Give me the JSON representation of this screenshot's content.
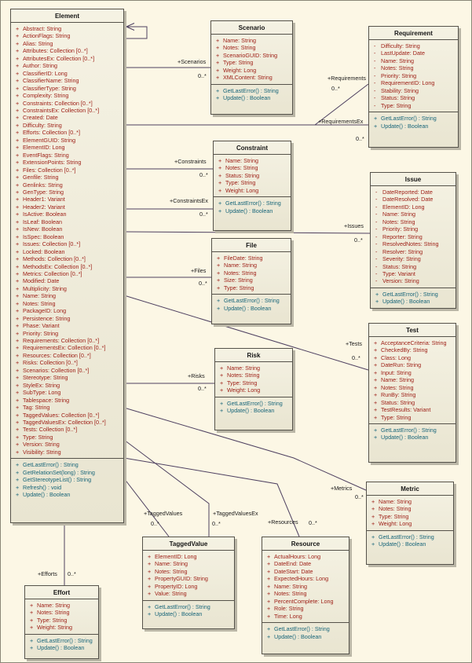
{
  "diagram": {
    "colors": {
      "background": "#fcf7e5",
      "box_fill": "#efebda",
      "box_border": "#55524a",
      "attribute_text": "#9c1b12",
      "method_text": "#176579",
      "connector": "#4e4060",
      "shadow": "#bab6a6"
    },
    "classes": [
      {
        "id": "element",
        "title": "Element",
        "attributes": [
          {
            "v": "+",
            "t": "Abstract: String"
          },
          {
            "v": "+",
            "t": "ActionFlags: String"
          },
          {
            "v": "+",
            "t": "Alias: String"
          },
          {
            "v": "+",
            "t": "Attributes: Collection [0..*]"
          },
          {
            "v": "+",
            "t": "AttributesEx: Collection [0..*]"
          },
          {
            "v": "+",
            "t": "Author: String"
          },
          {
            "v": "+",
            "t": "ClassifierID: Long"
          },
          {
            "v": "+",
            "t": "ClassifierName: String"
          },
          {
            "v": "+",
            "t": "ClassifierType: String"
          },
          {
            "v": "+",
            "t": "Complexity: String"
          },
          {
            "v": "+",
            "t": "Constraints: Collection [0..*]"
          },
          {
            "v": "+",
            "t": "ConstraintsEx: Collection [0..*]"
          },
          {
            "v": "+",
            "t": "Created: Date"
          },
          {
            "v": "+",
            "t": "Difficulty: String"
          },
          {
            "v": "+",
            "t": "Efforts: Collection [0..*]"
          },
          {
            "v": "+",
            "t": "ElementGUID: String"
          },
          {
            "v": "+",
            "t": "ElementID: Long"
          },
          {
            "v": "+",
            "t": "EventFlags: String"
          },
          {
            "v": "+",
            "t": "ExtensionPoints: String"
          },
          {
            "v": "+",
            "t": "Files: Collection [0..*]"
          },
          {
            "v": "+",
            "t": "Genfile: String"
          },
          {
            "v": "+",
            "t": "Genlinks: String"
          },
          {
            "v": "+",
            "t": "GenType: String"
          },
          {
            "v": "+",
            "t": "Header1: Variant"
          },
          {
            "v": "+",
            "t": "Header2: Variant"
          },
          {
            "v": "+",
            "t": "IsActive: Boolean"
          },
          {
            "v": "+",
            "t": "IsLeaf: Boolean"
          },
          {
            "v": "+",
            "t": "IsNew: Boolean"
          },
          {
            "v": "+",
            "t": "IsSpec: Boolean"
          },
          {
            "v": "+",
            "t": "Issues: Collection [0..*]"
          },
          {
            "v": "+",
            "t": "Locked: Boolean"
          },
          {
            "v": "+",
            "t": "Methods: Collection [0..*]"
          },
          {
            "v": "+",
            "t": "MethodsEx: Collection [0..*]"
          },
          {
            "v": "+",
            "t": "Metrics: Collection [0..*]"
          },
          {
            "v": "+",
            "t": "Modified: Date"
          },
          {
            "v": "+",
            "t": "Multiplicity: String"
          },
          {
            "v": "+",
            "t": "Name: String"
          },
          {
            "v": "+",
            "t": "Notes: String"
          },
          {
            "v": "+",
            "t": "PackageID: Long"
          },
          {
            "v": "+",
            "t": "Persistence: String"
          },
          {
            "v": "+",
            "t": "Phase: Variant"
          },
          {
            "v": "+",
            "t": "Priority: String"
          },
          {
            "v": "+",
            "t": "Requirements: Collection [0..*]"
          },
          {
            "v": "+",
            "t": "RequirementsEx: Collection [0..*]"
          },
          {
            "v": "+",
            "t": "Resources: Collection [0..*]"
          },
          {
            "v": "+",
            "t": "Risks: Collection [0..*]"
          },
          {
            "v": "+",
            "t": "Scenarios: Collection [0..*]"
          },
          {
            "v": "+",
            "t": "Stereotype: String"
          },
          {
            "v": "+",
            "t": "StyleEx: String"
          },
          {
            "v": "+",
            "t": "SubType: Long"
          },
          {
            "v": "+",
            "t": "Tablespace: String"
          },
          {
            "v": "+",
            "t": "Tag: String"
          },
          {
            "v": "+",
            "t": "TaggedValues: Collection [0..*]"
          },
          {
            "v": "+",
            "t": "TaggedValuesEx: Collection [0..*]"
          },
          {
            "v": "+",
            "t": "Tests: Collection [0..*]"
          },
          {
            "v": "+",
            "t": "Type: String"
          },
          {
            "v": "+",
            "t": "Version: String"
          },
          {
            "v": "+",
            "t": "Visibility: String"
          }
        ],
        "methods": [
          {
            "v": "+",
            "t": "GetLastError() : String"
          },
          {
            "v": "+",
            "t": "GetRelationSet(long) : String"
          },
          {
            "v": "+",
            "t": "GetStereotypeList() : String"
          },
          {
            "v": "+",
            "t": "Refresh() : void"
          },
          {
            "v": "+",
            "t": "Update() : Boolean"
          }
        ]
      },
      {
        "id": "scenario",
        "title": "Scenario",
        "attributes": [
          {
            "v": "+",
            "t": "Name: String"
          },
          {
            "v": "+",
            "t": "Notes: String"
          },
          {
            "v": "+",
            "t": "ScenarioGUID: String"
          },
          {
            "v": "+",
            "t": "Type: String"
          },
          {
            "v": "+",
            "t": "Weight: Long"
          },
          {
            "v": "+",
            "t": "XMLContent: String"
          }
        ],
        "methods": [
          {
            "v": "+",
            "t": "GetLastError() : String"
          },
          {
            "v": "+",
            "t": "Update() : Boolean"
          }
        ]
      },
      {
        "id": "requirement",
        "title": "Requirement",
        "attributes": [
          {
            "v": "-",
            "t": "Difficulty: String"
          },
          {
            "v": "-",
            "t": "LastUpdate: Date"
          },
          {
            "v": "-",
            "t": "Name: String"
          },
          {
            "v": "-",
            "t": "Notes: String"
          },
          {
            "v": "-",
            "t": "Priority: String"
          },
          {
            "v": "-",
            "t": "RequirementID: Long"
          },
          {
            "v": "-",
            "t": "Stability: String"
          },
          {
            "v": "-",
            "t": "Status: String"
          },
          {
            "v": "-",
            "t": "Type: String"
          }
        ],
        "methods": [
          {
            "v": "+",
            "t": "GetLastError() : String"
          },
          {
            "v": "+",
            "t": "Update() : Boolean"
          }
        ]
      },
      {
        "id": "constraint",
        "title": "Constraint",
        "attributes": [
          {
            "v": "+",
            "t": "Name: String"
          },
          {
            "v": "+",
            "t": "Notes: String"
          },
          {
            "v": "+",
            "t": "Status: String"
          },
          {
            "v": "+",
            "t": "Type: String"
          },
          {
            "v": "+",
            "t": "Weight: Long"
          }
        ],
        "methods": [
          {
            "v": "+",
            "t": "GetLastError() : String"
          },
          {
            "v": "+",
            "t": "Update() : Boolean"
          }
        ]
      },
      {
        "id": "issue",
        "title": "Issue",
        "attributes": [
          {
            "v": "-",
            "t": "DateReported: Date"
          },
          {
            "v": "-",
            "t": "DateResolved: Date"
          },
          {
            "v": "-",
            "t": "ElementID: Long"
          },
          {
            "v": "-",
            "t": "Name: String"
          },
          {
            "v": "-",
            "t": "Notes: String"
          },
          {
            "v": "-",
            "t": "Priority: String"
          },
          {
            "v": "-",
            "t": "Reporter: String"
          },
          {
            "v": "-",
            "t": "ResolvedNotes: String"
          },
          {
            "v": "-",
            "t": "Resolver: String"
          },
          {
            "v": "-",
            "t": "Severity: String"
          },
          {
            "v": "-",
            "t": "Status: String"
          },
          {
            "v": "-",
            "t": "Type: Variant"
          },
          {
            "v": "-",
            "t": "Version: String"
          }
        ],
        "methods": [
          {
            "v": "+",
            "t": "GetLastError() : String"
          },
          {
            "v": "+",
            "t": "Update() : Boolean"
          }
        ]
      },
      {
        "id": "file",
        "title": "File",
        "attributes": [
          {
            "v": "+",
            "t": "FileDate: String"
          },
          {
            "v": "+",
            "t": "Name: String"
          },
          {
            "v": "+",
            "t": "Notes: String"
          },
          {
            "v": "+",
            "t": "Size: String"
          },
          {
            "v": "+",
            "t": "Type: String"
          }
        ],
        "methods": [
          {
            "v": "+",
            "t": "GetLastError() : String"
          },
          {
            "v": "+",
            "t": "Update() : Boolean"
          }
        ]
      },
      {
        "id": "test",
        "title": "Test",
        "attributes": [
          {
            "v": "+",
            "t": "AcceptanceCriteria: String"
          },
          {
            "v": "+",
            "t": "CheckedBy: String"
          },
          {
            "v": "+",
            "t": "Class: Long"
          },
          {
            "v": "+",
            "t": "DateRun: String"
          },
          {
            "v": "+",
            "t": "Input: String"
          },
          {
            "v": "+",
            "t": "Name: String"
          },
          {
            "v": "+",
            "t": "Notes: String"
          },
          {
            "v": "+",
            "t": "RunBy: String"
          },
          {
            "v": "+",
            "t": "Status: String"
          },
          {
            "v": "+",
            "t": "TestResults: Variant"
          },
          {
            "v": "+",
            "t": "Type: String"
          }
        ],
        "methods": [
          {
            "v": "+",
            "t": "GetLastError() : String"
          },
          {
            "v": "+",
            "t": "Update() : Boolean"
          }
        ]
      },
      {
        "id": "risk",
        "title": "Risk",
        "attributes": [
          {
            "v": "+",
            "t": "Name: String"
          },
          {
            "v": "+",
            "t": "Notes: String"
          },
          {
            "v": "+",
            "t": "Type: String"
          },
          {
            "v": "+",
            "t": "Weight: Long"
          }
        ],
        "methods": [
          {
            "v": "+",
            "t": "GetLastError() : String"
          },
          {
            "v": "+",
            "t": "Update() : Boolean"
          }
        ]
      },
      {
        "id": "metric",
        "title": "Metric",
        "attributes": [
          {
            "v": "+",
            "t": "Name: String"
          },
          {
            "v": "+",
            "t": "Notes: String"
          },
          {
            "v": "+",
            "t": "Type: String"
          },
          {
            "v": "+",
            "t": "Weight: Long"
          }
        ],
        "methods": [
          {
            "v": "+",
            "t": "GetLastError() : String"
          },
          {
            "v": "+",
            "t": "Update() : Boolean"
          }
        ]
      },
      {
        "id": "taggedvalue",
        "title": "TaggedValue",
        "attributes": [
          {
            "v": "+",
            "t": "ElementID: Long"
          },
          {
            "v": "+",
            "t": "Name: String"
          },
          {
            "v": "+",
            "t": "Notes: String"
          },
          {
            "v": "+",
            "t": "PropertyGUID: String"
          },
          {
            "v": "+",
            "t": "PropertyID: Long"
          },
          {
            "v": "+",
            "t": "Value: String"
          }
        ],
        "methods": [
          {
            "v": "+",
            "t": "GetLastError() : String"
          },
          {
            "v": "+",
            "t": "Update() : Boolean"
          }
        ]
      },
      {
        "id": "resource",
        "title": "Resource",
        "attributes": [
          {
            "v": "+",
            "t": "ActualHours: Long"
          },
          {
            "v": "+",
            "t": "DateEnd: Date"
          },
          {
            "v": "+",
            "t": "DateStart: Date"
          },
          {
            "v": "+",
            "t": "ExpectedHours: Long"
          },
          {
            "v": "+",
            "t": "Name: String"
          },
          {
            "v": "+",
            "t": "Notes: String"
          },
          {
            "v": "+",
            "t": "PercentComplete: Long"
          },
          {
            "v": "+",
            "t": "Role: String"
          },
          {
            "v": "+",
            "t": "Time: Long"
          }
        ],
        "methods": [
          {
            "v": "+",
            "t": "GetLastError() : String"
          },
          {
            "v": "+",
            "t": "Update() : Boolean"
          }
        ]
      },
      {
        "id": "effort",
        "title": "Effort",
        "attributes": [
          {
            "v": "+",
            "t": "Name: String"
          },
          {
            "v": "+",
            "t": "Notes: String"
          },
          {
            "v": "+",
            "t": "Type: String"
          },
          {
            "v": "+",
            "t": "Weight: String"
          }
        ],
        "methods": [
          {
            "v": "+",
            "t": "GetLastError() : String"
          },
          {
            "v": "+",
            "t": "Update() : Boolean"
          }
        ]
      }
    ],
    "connector_labels": [
      {
        "id": "scenarios",
        "role": "+Scenarios",
        "mult": "0..*"
      },
      {
        "id": "requirements",
        "role": "+Requirements",
        "mult": "0..*"
      },
      {
        "id": "requirementsex",
        "role": "+RequirementsEx",
        "mult": "0..*"
      },
      {
        "id": "constraints",
        "role": "+Constraints",
        "mult": "0..*"
      },
      {
        "id": "constraintsex",
        "role": "+ConstraintsEx",
        "mult": "0..*"
      },
      {
        "id": "issues",
        "role": "+Issues",
        "mult": "0..*"
      },
      {
        "id": "files",
        "role": "+Files",
        "mult": "0..*"
      },
      {
        "id": "tests",
        "role": "+Tests",
        "mult": "0..*"
      },
      {
        "id": "risks",
        "role": "+Risks",
        "mult": "0..*"
      },
      {
        "id": "metrics",
        "role": "+Metrics",
        "mult": "0..*"
      },
      {
        "id": "taggedvalues",
        "role": "+TaggedValues",
        "mult": "0..*"
      },
      {
        "id": "taggedvaluesex",
        "role": "+TaggedValuesEx",
        "mult": "0..*"
      },
      {
        "id": "resources",
        "role": "+Resources",
        "mult": "0..*"
      },
      {
        "id": "efforts",
        "role": "+Efforts",
        "mult": "0..*"
      }
    ]
  }
}
